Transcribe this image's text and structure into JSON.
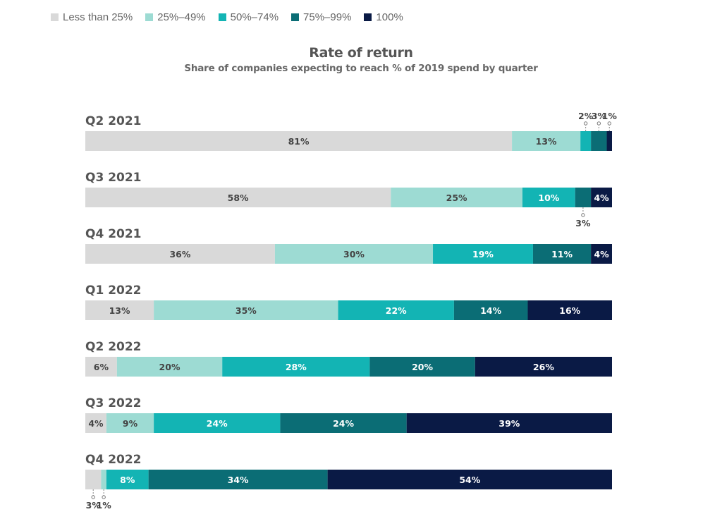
{
  "chart_data": {
    "type": "bar",
    "orientation": "horizontal",
    "stacked": true,
    "title": "Rate of return",
    "subtitle": "Share of companies expecting to reach % of 2019 spend by quarter",
    "categories": [
      "Q2 2021",
      "Q3 2021",
      "Q4 2021",
      "Q1 2022",
      "Q2 2022",
      "Q3 2022",
      "Q4 2022"
    ],
    "series": [
      {
        "name": "Less than 25%",
        "color": "#d9d9d9",
        "values": [
          81,
          58,
          36,
          13,
          6,
          4,
          3
        ]
      },
      {
        "name": "25%–49%",
        "color": "#9ddbd3",
        "values": [
          13,
          25,
          30,
          35,
          20,
          9,
          1
        ]
      },
      {
        "name": "50%–74%",
        "color": "#13b4b4",
        "values": [
          2,
          10,
          19,
          22,
          28,
          24,
          8
        ]
      },
      {
        "name": "75%–99%",
        "color": "#0b6d75",
        "values": [
          3,
          3,
          11,
          14,
          20,
          24,
          34
        ]
      },
      {
        "name": "100%",
        "color": "#0a1a45",
        "values": [
          1,
          4,
          4,
          16,
          26,
          39,
          54
        ]
      }
    ],
    "label_colors": [
      "#444444",
      "#444444",
      "#ffffff",
      "#ffffff",
      "#ffffff"
    ],
    "xlim": [
      0,
      100
    ],
    "legend": "top-left",
    "grid": false
  }
}
